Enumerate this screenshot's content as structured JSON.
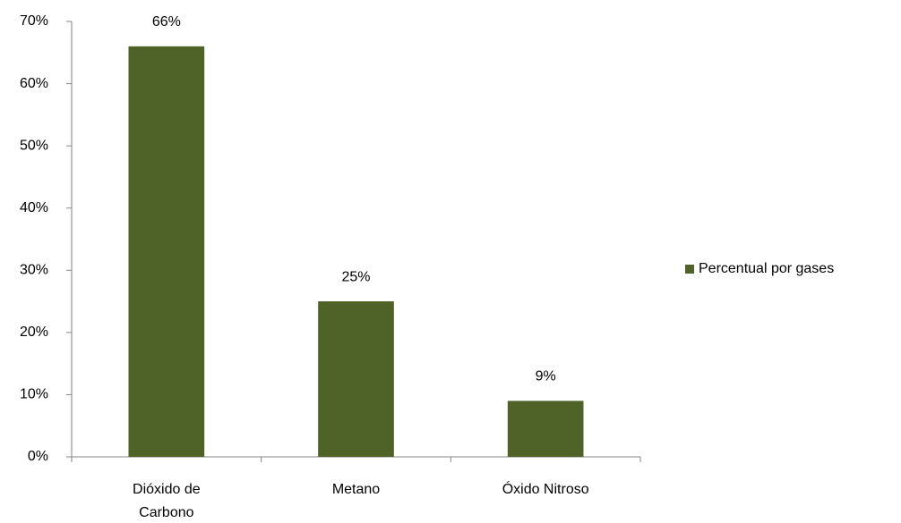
{
  "chart_data": {
    "type": "bar",
    "categories": [
      "Dióxido de Carbono",
      "Metano",
      "Óxido Nitroso"
    ],
    "series": [
      {
        "name": "Percentual por gases",
        "color": "#4f6228",
        "values": [
          66,
          25,
          9
        ],
        "value_labels": [
          "66%",
          "25%",
          "9%"
        ]
      }
    ],
    "ylim": [
      0,
      70
    ],
    "yticks": [
      {
        "value": 0,
        "label": "0%"
      },
      {
        "value": 10,
        "label": "10%"
      },
      {
        "value": 20,
        "label": "20%"
      },
      {
        "value": 30,
        "label": "30%"
      },
      {
        "value": 40,
        "label": "40%"
      },
      {
        "value": 50,
        "label": "50%"
      },
      {
        "value": 60,
        "label": "60%"
      },
      {
        "value": 70,
        "label": "70%"
      }
    ],
    "grid": false,
    "legend": "right"
  }
}
